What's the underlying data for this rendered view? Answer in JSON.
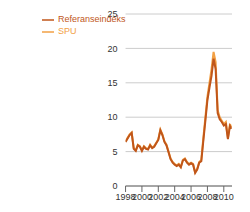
{
  "chart_data": {
    "type": "line",
    "x": [
      1998.0,
      1998.25,
      1998.5,
      1998.75,
      1999.0,
      1999.25,
      1999.5,
      1999.75,
      2000.0,
      2000.25,
      2000.5,
      2000.75,
      2001.0,
      2001.25,
      2001.5,
      2001.75,
      2002.0,
      2002.25,
      2002.5,
      2002.75,
      2003.0,
      2003.25,
      2003.5,
      2003.75,
      2004.0,
      2004.25,
      2004.5,
      2004.75,
      2005.0,
      2005.25,
      2005.5,
      2005.75,
      2006.0,
      2006.25,
      2006.5,
      2006.75,
      2007.0,
      2007.25,
      2007.5,
      2007.75,
      2008.0,
      2008.25,
      2008.5,
      2008.75,
      2009.0,
      2009.25,
      2009.5,
      2009.75,
      2010.0,
      2010.25,
      2010.5,
      2010.75,
      2010.9
    ],
    "series": [
      {
        "name": "SPU",
        "color": "#f2a044",
        "values": [
          6.5,
          7.0,
          7.5,
          7.8,
          5.5,
          5.2,
          6.0,
          5.8,
          5.2,
          5.8,
          5.5,
          5.4,
          6.0,
          5.6,
          5.8,
          6.3,
          6.8,
          8.2,
          7.5,
          6.5,
          6.0,
          5.0,
          4.0,
          3.5,
          3.2,
          3.0,
          3.2,
          2.8,
          3.8,
          4.0,
          3.5,
          3.2,
          3.4,
          3.2,
          2.0,
          2.5,
          3.5,
          3.8,
          7.0,
          10.0,
          13.0,
          15.0,
          17.0,
          19.5,
          18.0,
          11.0,
          10.0,
          9.5,
          9.0,
          9.3,
          7.0,
          9.0,
          8.5
        ]
      },
      {
        "name": "Referanseindeks",
        "color": "#c0561a",
        "values": [
          6.4,
          6.9,
          7.4,
          7.7,
          5.4,
          5.1,
          5.9,
          5.7,
          5.1,
          5.7,
          5.4,
          5.3,
          5.9,
          5.5,
          5.7,
          6.2,
          6.7,
          8.1,
          7.4,
          6.4,
          5.9,
          4.9,
          3.9,
          3.4,
          3.1,
          2.9,
          3.1,
          2.7,
          3.7,
          3.9,
          3.4,
          3.1,
          3.3,
          3.1,
          1.9,
          2.4,
          3.4,
          3.6,
          6.6,
          9.5,
          12.5,
          14.3,
          16.0,
          18.5,
          17.0,
          10.6,
          9.7,
          9.3,
          8.8,
          9.0,
          6.8,
          8.7,
          8.3
        ]
      }
    ],
    "xlim": [
      1998,
      2011
    ],
    "xticks": [
      1998,
      2000,
      2002,
      2004,
      2006,
      2008,
      2010
    ],
    "ylim": [
      0,
      25
    ],
    "yticks": [
      0,
      5,
      10,
      15,
      20,
      25
    ],
    "grid": true,
    "legend": "top-left"
  }
}
